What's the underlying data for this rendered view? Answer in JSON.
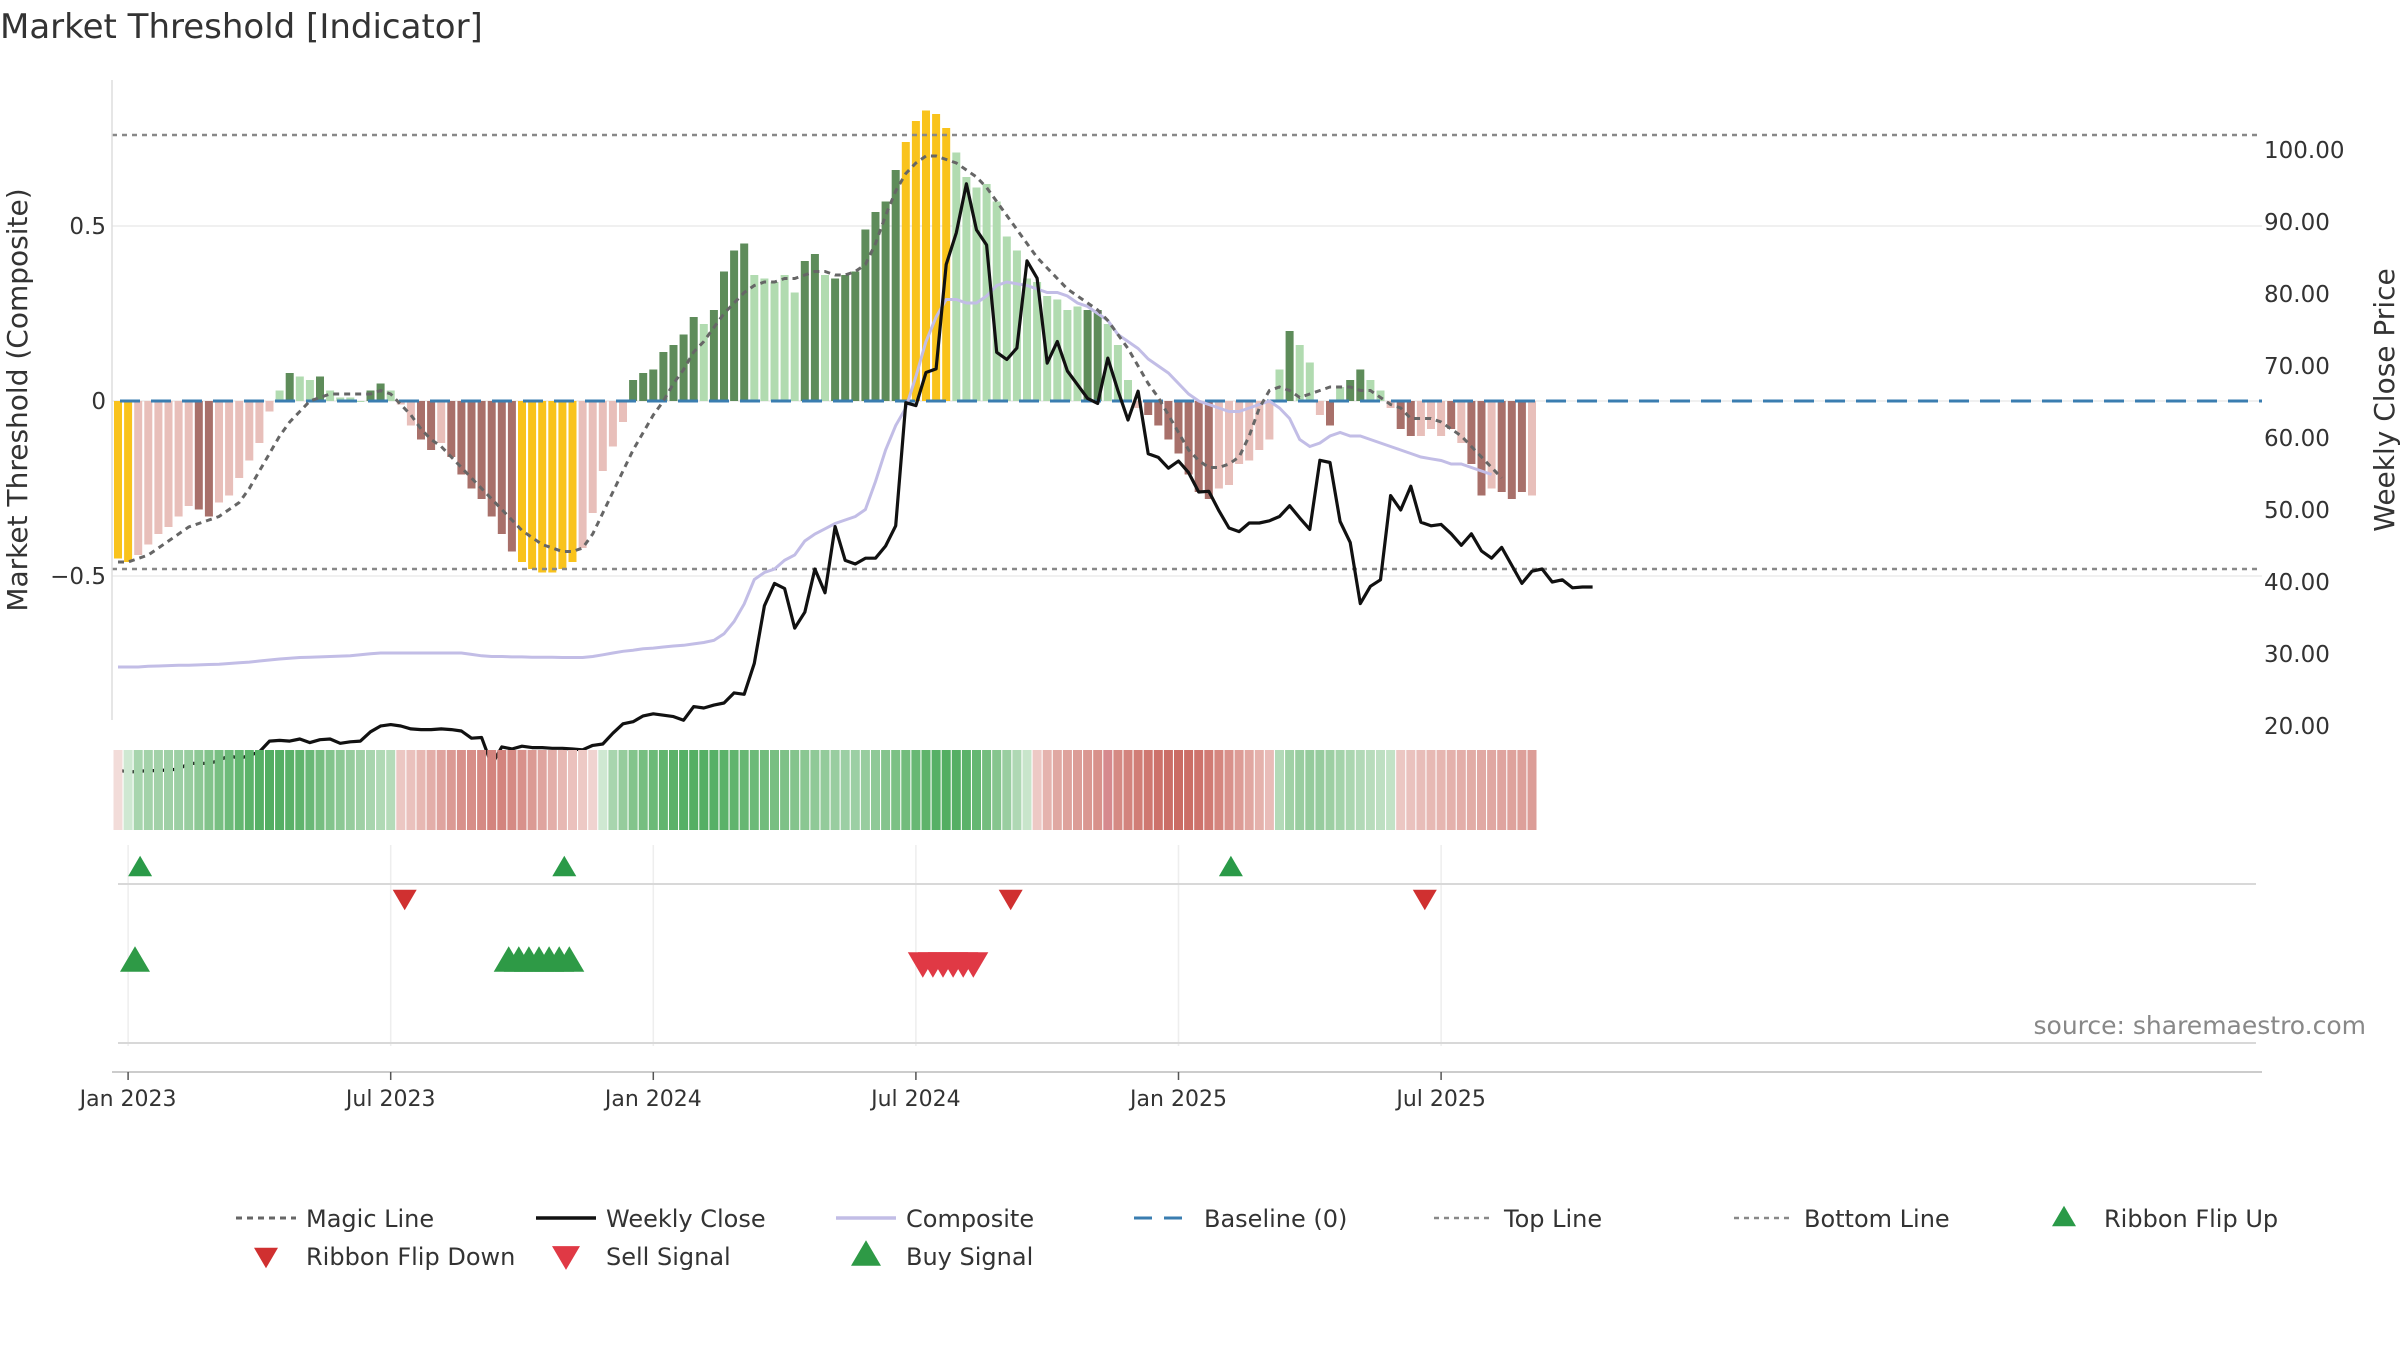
{
  "chart_data": {
    "type": "bar",
    "title": "Market Threshold [Indicator]",
    "ylabel_left": "Market Threshold (Composite)",
    "ylabel_right": "Weekly Close Price",
    "source": "source: sharemaestro.com",
    "left_ticks": [
      {
        "v": 0.5,
        "label": "0.5"
      },
      {
        "v": 0,
        "label": "0"
      },
      {
        "v": -0.5,
        "label": "−0.5"
      }
    ],
    "right_ticks": [
      {
        "v": 100,
        "label": "100.00"
      },
      {
        "v": 90,
        "label": "90.00"
      },
      {
        "v": 80,
        "label": "80.00"
      },
      {
        "v": 70,
        "label": "70.00"
      },
      {
        "v": 60,
        "label": "60.00"
      },
      {
        "v": 50,
        "label": "50.00"
      },
      {
        "v": 40,
        "label": "40.00"
      },
      {
        "v": 30,
        "label": "30.00"
      },
      {
        "v": 20,
        "label": "20.00"
      }
    ],
    "x_ticks": [
      {
        "i": 1,
        "label": "Jan 2023"
      },
      {
        "i": 27,
        "label": "Jul 2023"
      },
      {
        "i": 53,
        "label": "Jan 2024"
      },
      {
        "i": 79,
        "label": "Jul 2024"
      },
      {
        "i": 105,
        "label": "Jan 2025"
      },
      {
        "i": 131,
        "label": "Jul 2025"
      }
    ],
    "top_line": 0.76,
    "bottom_line": -0.48,
    "baseline": 0,
    "composite_bars": [
      [
        -0.45,
        "warn"
      ],
      [
        -0.46,
        "warn"
      ],
      [
        -0.44,
        "lred"
      ],
      [
        -0.41,
        "lred"
      ],
      [
        -0.38,
        "lred"
      ],
      [
        -0.36,
        "lred"
      ],
      [
        -0.33,
        "lred"
      ],
      [
        -0.3,
        "lred"
      ],
      [
        -0.31,
        "dred"
      ],
      [
        -0.33,
        "dred"
      ],
      [
        -0.29,
        "lred"
      ],
      [
        -0.27,
        "lred"
      ],
      [
        -0.22,
        "lred"
      ],
      [
        -0.17,
        "lred"
      ],
      [
        -0.12,
        "lred"
      ],
      [
        -0.03,
        "lred"
      ],
      [
        0.03,
        "lgrn"
      ],
      [
        0.08,
        "dgrn"
      ],
      [
        0.07,
        "lgrn"
      ],
      [
        0.06,
        "lgrn"
      ],
      [
        0.07,
        "dgrn"
      ],
      [
        0.03,
        "lgrn"
      ],
      [
        0.01,
        "lgrn"
      ],
      [
        0.01,
        "lgrn"
      ],
      [
        0.0,
        "lgrn"
      ],
      [
        0.03,
        "dgrn"
      ],
      [
        0.05,
        "dgrn"
      ],
      [
        0.03,
        "lgrn"
      ],
      [
        -0.01,
        "lred"
      ],
      [
        -0.07,
        "lred"
      ],
      [
        -0.11,
        "dred"
      ],
      [
        -0.14,
        "dred"
      ],
      [
        -0.12,
        "lred"
      ],
      [
        -0.16,
        "dred"
      ],
      [
        -0.21,
        "dred"
      ],
      [
        -0.25,
        "dred"
      ],
      [
        -0.28,
        "dred"
      ],
      [
        -0.33,
        "dred"
      ],
      [
        -0.38,
        "dred"
      ],
      [
        -0.43,
        "dred"
      ],
      [
        -0.46,
        "warn"
      ],
      [
        -0.48,
        "warn"
      ],
      [
        -0.49,
        "warn"
      ],
      [
        -0.49,
        "warn"
      ],
      [
        -0.48,
        "warn"
      ],
      [
        -0.46,
        "warn"
      ],
      [
        -0.42,
        "lred"
      ],
      [
        -0.32,
        "lred"
      ],
      [
        -0.2,
        "lred"
      ],
      [
        -0.13,
        "lred"
      ],
      [
        -0.06,
        "lred"
      ],
      [
        0.06,
        "dgrn"
      ],
      [
        0.08,
        "dgrn"
      ],
      [
        0.09,
        "dgrn"
      ],
      [
        0.14,
        "dgrn"
      ],
      [
        0.16,
        "dgrn"
      ],
      [
        0.19,
        "dgrn"
      ],
      [
        0.24,
        "dgrn"
      ],
      [
        0.22,
        "lgrn"
      ],
      [
        0.26,
        "dgrn"
      ],
      [
        0.37,
        "dgrn"
      ],
      [
        0.43,
        "dgrn"
      ],
      [
        0.45,
        "dgrn"
      ],
      [
        0.36,
        "lgrn"
      ],
      [
        0.35,
        "lgrn"
      ],
      [
        0.34,
        "lgrn"
      ],
      [
        0.36,
        "lgrn"
      ],
      [
        0.31,
        "lgrn"
      ],
      [
        0.4,
        "dgrn"
      ],
      [
        0.42,
        "dgrn"
      ],
      [
        0.36,
        "lgrn"
      ],
      [
        0.35,
        "dgrn"
      ],
      [
        0.36,
        "dgrn"
      ],
      [
        0.37,
        "dgrn"
      ],
      [
        0.49,
        "dgrn"
      ],
      [
        0.54,
        "dgrn"
      ],
      [
        0.57,
        "dgrn"
      ],
      [
        0.66,
        "dgrn"
      ],
      [
        0.74,
        "warn"
      ],
      [
        0.8,
        "warn"
      ],
      [
        0.83,
        "warn"
      ],
      [
        0.82,
        "warn"
      ],
      [
        0.78,
        "warn"
      ],
      [
        0.71,
        "lgrn"
      ],
      [
        0.64,
        "lgrn"
      ],
      [
        0.61,
        "lgrn"
      ],
      [
        0.62,
        "lgrn"
      ],
      [
        0.57,
        "lgrn"
      ],
      [
        0.47,
        "lgrn"
      ],
      [
        0.43,
        "lgrn"
      ],
      [
        0.35,
        "lgrn"
      ],
      [
        0.34,
        "lgrn"
      ],
      [
        0.3,
        "lgrn"
      ],
      [
        0.29,
        "lgrn"
      ],
      [
        0.26,
        "lgrn"
      ],
      [
        0.27,
        "lgrn"
      ],
      [
        0.26,
        "dgrn"
      ],
      [
        0.26,
        "dgrn"
      ],
      [
        0.22,
        "lgrn"
      ],
      [
        0.16,
        "lgrn"
      ],
      [
        0.06,
        "lgrn"
      ],
      [
        -0.02,
        "lred"
      ],
      [
        -0.04,
        "dred"
      ],
      [
        -0.07,
        "dred"
      ],
      [
        -0.11,
        "dred"
      ],
      [
        -0.15,
        "dred"
      ],
      [
        -0.21,
        "dred"
      ],
      [
        -0.26,
        "dred"
      ],
      [
        -0.28,
        "dred"
      ],
      [
        -0.25,
        "lred"
      ],
      [
        -0.24,
        "lred"
      ],
      [
        -0.18,
        "lred"
      ],
      [
        -0.17,
        "lred"
      ],
      [
        -0.14,
        "lred"
      ],
      [
        -0.11,
        "lred"
      ],
      [
        0.09,
        "lgrn"
      ],
      [
        0.2,
        "dgrn"
      ],
      [
        0.16,
        "lgrn"
      ],
      [
        0.11,
        "lgrn"
      ],
      [
        -0.04,
        "lred"
      ],
      [
        -0.07,
        "dred"
      ],
      [
        0.04,
        "lgrn"
      ],
      [
        0.06,
        "dgrn"
      ],
      [
        0.09,
        "dgrn"
      ],
      [
        0.06,
        "lgrn"
      ],
      [
        0.03,
        "lgrn"
      ],
      [
        -0.02,
        "lred"
      ],
      [
        -0.08,
        "dred"
      ],
      [
        -0.1,
        "dred"
      ],
      [
        -0.1,
        "lred"
      ],
      [
        -0.08,
        "lred"
      ],
      [
        -0.1,
        "lred"
      ],
      [
        -0.08,
        "dred"
      ],
      [
        -0.12,
        "lred"
      ],
      [
        -0.18,
        "dred"
      ],
      [
        -0.27,
        "dred"
      ],
      [
        -0.25,
        "lred"
      ],
      [
        -0.26,
        "dred"
      ],
      [
        -0.28,
        "dred"
      ],
      [
        -0.26,
        "dred"
      ],
      [
        -0.27,
        "lred"
      ]
    ],
    "magic_line": [
      -0.46,
      -0.46,
      -0.45,
      -0.44,
      -0.42,
      -0.4,
      -0.38,
      -0.36,
      -0.35,
      -0.34,
      -0.33,
      -0.31,
      -0.29,
      -0.25,
      -0.2,
      -0.15,
      -0.1,
      -0.06,
      -0.03,
      0.0,
      0.01,
      0.02,
      0.02,
      0.02,
      0.02,
      0.02,
      0.03,
      0.02,
      -0.01,
      -0.04,
      -0.08,
      -0.11,
      -0.13,
      -0.16,
      -0.19,
      -0.22,
      -0.25,
      -0.28,
      -0.31,
      -0.34,
      -0.37,
      -0.39,
      -0.41,
      -0.42,
      -0.43,
      -0.43,
      -0.42,
      -0.38,
      -0.32,
      -0.26,
      -0.2,
      -0.14,
      -0.09,
      -0.04,
      0.0,
      0.05,
      0.09,
      0.14,
      0.17,
      0.21,
      0.25,
      0.28,
      0.31,
      0.33,
      0.34,
      0.34,
      0.35,
      0.35,
      0.36,
      0.37,
      0.37,
      0.36,
      0.36,
      0.37,
      0.39,
      0.45,
      0.53,
      0.6,
      0.65,
      0.68,
      0.7,
      0.7,
      0.69,
      0.68,
      0.66,
      0.64,
      0.61,
      0.57,
      0.53,
      0.49,
      0.45,
      0.41,
      0.38,
      0.35,
      0.32,
      0.3,
      0.28,
      0.26,
      0.23,
      0.19,
      0.15,
      0.1,
      0.05,
      0.01,
      -0.04,
      -0.09,
      -0.14,
      -0.17,
      -0.19,
      -0.19,
      -0.18,
      -0.16,
      -0.1,
      -0.02,
      0.03,
      0.04,
      0.03,
      0.01,
      0.02,
      0.03,
      0.04,
      0.04,
      0.04,
      0.03,
      0.03,
      0.01,
      -0.01,
      -0.02,
      -0.05,
      -0.05,
      -0.05,
      -0.06,
      -0.08,
      -0.1,
      -0.13,
      -0.16,
      -0.19,
      -0.22
    ],
    "weekly_close": [
      13.9,
      13.6,
      13.7,
      13.8,
      13.8,
      13.9,
      14.0,
      14.8,
      14.8,
      14.8,
      15.2,
      15.9,
      15.5,
      15.9,
      16.4,
      17.9,
      18.0,
      17.9,
      18.2,
      17.7,
      18.1,
      18.2,
      17.6,
      17.8,
      17.9,
      19.2,
      20.0,
      20.2,
      20.0,
      19.6,
      19.5,
      19.5,
      19.6,
      19.5,
      19.3,
      18.3,
      18.4,
      14.6,
      17.1,
      16.8,
      17.2,
      17.0,
      17.0,
      16.9,
      16.9,
      16.8,
      16.7,
      17.3,
      17.5,
      19.0,
      20.3,
      20.6,
      21.4,
      21.7,
      21.5,
      21.3,
      20.8,
      22.7,
      22.5,
      22.9,
      23.2,
      24.6,
      24.4,
      28.7,
      36.7,
      39.8,
      39.1,
      33.6,
      35.8,
      41.8,
      38.5,
      47.7,
      43.0,
      42.5,
      43.3,
      43.3,
      45.0,
      47.8,
      64.9,
      64.5,
      69.1,
      69.6,
      84.1,
      88.5,
      95.3,
      88.9,
      86.8,
      71.9,
      70.9,
      72.5,
      84.6,
      82.2,
      70.4,
      73.4,
      69.3,
      67.4,
      65.5,
      64.8,
      71.1,
      66.6,
      62.5,
      66.5,
      57.8,
      57.3,
      55.8,
      56.8,
      55.2,
      52.5,
      52.6,
      49.9,
      47.5,
      47.0,
      48.2,
      48.2,
      48.5,
      49.1,
      50.6,
      48.9,
      47.3,
      56.9,
      56.6,
      48.4,
      45.5,
      37.0,
      39.4,
      40.3,
      52.0,
      50.0,
      53.3,
      48.3,
      47.8,
      48.0,
      46.7,
      45.1,
      46.7,
      44.3,
      43.3,
      44.8,
      42.3,
      39.8,
      41.5,
      41.8,
      40.0,
      40.3,
      39.2,
      39.3,
      39.3
    ],
    "composite_line": [
      -0.76,
      -0.76,
      -0.76,
      -0.758,
      -0.757,
      -0.756,
      -0.755,
      -0.755,
      -0.754,
      -0.753,
      -0.752,
      -0.75,
      -0.748,
      -0.746,
      -0.743,
      -0.74,
      -0.737,
      -0.735,
      -0.733,
      -0.732,
      -0.731,
      -0.73,
      -0.729,
      -0.728,
      -0.725,
      -0.722,
      -0.72,
      -0.72,
      -0.72,
      -0.72,
      -0.72,
      -0.72,
      -0.72,
      -0.72,
      -0.72,
      -0.724,
      -0.728,
      -0.73,
      -0.73,
      -0.731,
      -0.731,
      -0.732,
      -0.732,
      -0.732,
      -0.733,
      -0.733,
      -0.733,
      -0.73,
      -0.725,
      -0.72,
      -0.715,
      -0.712,
      -0.708,
      -0.706,
      -0.703,
      -0.7,
      -0.698,
      -0.694,
      -0.69,
      -0.684,
      -0.665,
      -0.63,
      -0.58,
      -0.51,
      -0.49,
      -0.48,
      -0.455,
      -0.44,
      -0.4,
      -0.38,
      -0.365,
      -0.35,
      -0.34,
      -0.33,
      -0.31,
      -0.23,
      -0.14,
      -0.07,
      -0.02,
      0.07,
      0.17,
      0.24,
      0.29,
      0.29,
      0.28,
      0.28,
      0.3,
      0.33,
      0.34,
      0.335,
      0.33,
      0.32,
      0.31,
      0.31,
      0.3,
      0.28,
      0.27,
      0.25,
      0.23,
      0.19,
      0.17,
      0.15,
      0.12,
      0.1,
      0.08,
      0.05,
      0.02,
      0.0,
      -0.01,
      -0.02,
      -0.03,
      -0.03,
      -0.02,
      -0.01,
      0.0,
      -0.02,
      -0.05,
      -0.11,
      -0.13,
      -0.12,
      -0.1,
      -0.09,
      -0.1,
      -0.1,
      -0.11,
      -0.12,
      -0.13,
      -0.14,
      -0.15,
      -0.16,
      -0.165,
      -0.17,
      -0.18,
      -0.18,
      -0.19,
      -0.2,
      -0.21
    ],
    "ribbon_colors": [
      "#f2dcd9",
      "#cfe8d2",
      "#a8d5ae",
      "#a3d2a9",
      "#a2d1a8",
      "#9fd0a6",
      "#9ccfa4",
      "#98cd9f",
      "#8dc895",
      "#82c38b",
      "#78bf82",
      "#6ebb7a",
      "#64b771",
      "#5cb36a",
      "#56b065",
      "#53ae62",
      "#55af64",
      "#5ab168",
      "#60b46d",
      "#6ab877",
      "#77be81",
      "#83c48c",
      "#8cc894",
      "#96cc9d",
      "#9fd0a5",
      "#a8d5ae",
      "#b0d9b5",
      "#b5dbb9",
      "#ecc7c3",
      "#eac1bd",
      "#e7b8b3",
      "#e3aea9",
      "#dfa49f",
      "#db9a94",
      "#d8918b",
      "#d78e88",
      "#d58a84",
      "#d3847e",
      "#d3847e",
      "#d58a84",
      "#d8918b",
      "#db9a94",
      "#dfa49f",
      "#e3aea9",
      "#e7b8b3",
      "#ebc1bd",
      "#edc9c5",
      "#f0d3d0",
      "#cfe8d2",
      "#a8d5ae",
      "#96cc9d",
      "#83c48c",
      "#76be80",
      "#6cba78",
      "#62b56f",
      "#5bb269",
      "#56b065",
      "#55af64",
      "#55af64",
      "#57b066",
      "#5bb269",
      "#60b46d",
      "#66b773",
      "#6cba78",
      "#72bc7c",
      "#78bf82",
      "#7ec187",
      "#84c48d",
      "#8ac792",
      "#8fc997",
      "#94cb9b",
      "#99cda0",
      "#9ccfa4",
      "#9ccfa4",
      "#98cd9f",
      "#8fc997",
      "#85c48d",
      "#7cc185",
      "#72bc7c",
      "#68b874",
      "#5eb36b",
      "#56b065",
      "#53ae62",
      "#55af64",
      "#5bb269",
      "#65b772",
      "#74bd7e",
      "#86c58e",
      "#9acea1",
      "#afd8b4",
      "#c8e5cb",
      "#edc9c5",
      "#e5b3ae",
      "#e0a8a2",
      "#dea29c",
      "#dc9d97",
      "#da9791",
      "#d8918b",
      "#d6898e",
      "#d58a84",
      "#d3847e",
      "#d17e77",
      "#cf7871",
      "#cd726b",
      "#cb6e67",
      "#cb6c64",
      "#cc6e66",
      "#ce736c",
      "#d17b74",
      "#d5867f",
      "#d9918b",
      "#dd9c96",
      "#e1a7a1",
      "#e5b2ac",
      "#e9bcb8",
      "#b3dab8",
      "#a0d1a6",
      "#99cda0",
      "#95cb9c",
      "#97cc9e",
      "#9dcfa3",
      "#a4d3aa",
      "#abd6b0",
      "#b2d9b7",
      "#b8dcbc",
      "#bedfc2",
      "#c3e2c6",
      "#ecc7c3",
      "#eac2be",
      "#e8bdb9",
      "#e7b9b4",
      "#e6b6b1",
      "#e4b1ac",
      "#e3aea9",
      "#e2aca6",
      "#e1a9a4",
      "#e0a7a2",
      "#dfa49f",
      "#dea29c",
      "#dda09a",
      "#dc9d97"
    ],
    "ribbon_flip_up": [
      1,
      43,
      109
    ],
    "ribbon_flip_down": [
      27,
      87,
      128
    ],
    "buy_signals": [
      0,
      37,
      38,
      39,
      40,
      41,
      42,
      43
    ],
    "sell_signals": [
      78,
      79,
      80,
      81,
      82,
      83
    ],
    "legend": [
      {
        "key": "magic",
        "label": "Magic Line"
      },
      {
        "key": "close",
        "label": "Weekly Close"
      },
      {
        "key": "composite",
        "label": "Composite"
      },
      {
        "key": "baseline",
        "label": "Baseline (0)"
      },
      {
        "key": "top",
        "label": "Top Line"
      },
      {
        "key": "bottom",
        "label": "Bottom Line"
      },
      {
        "key": "flipup",
        "label": "Ribbon Flip Up"
      },
      {
        "key": "flipdown",
        "label": "Ribbon Flip Down"
      },
      {
        "key": "sell",
        "label": "Sell Signal"
      },
      {
        "key": "buy",
        "label": "Buy Signal"
      }
    ],
    "colors": {
      "dred": "#a8706a",
      "lred": "#e8bfba",
      "dgrn": "#5e8c5a",
      "lgrn": "#b1dbb0",
      "warn": "#f9c31c",
      "magic": "#666666",
      "close": "#111111",
      "composite": "#c2bde6",
      "baseline": "#3a7db0",
      "refline": "#888888",
      "flipup": "#2a9a48",
      "flipdown": "#d03030",
      "sell": "#e03945",
      "buy": "#2e9a46"
    }
  }
}
